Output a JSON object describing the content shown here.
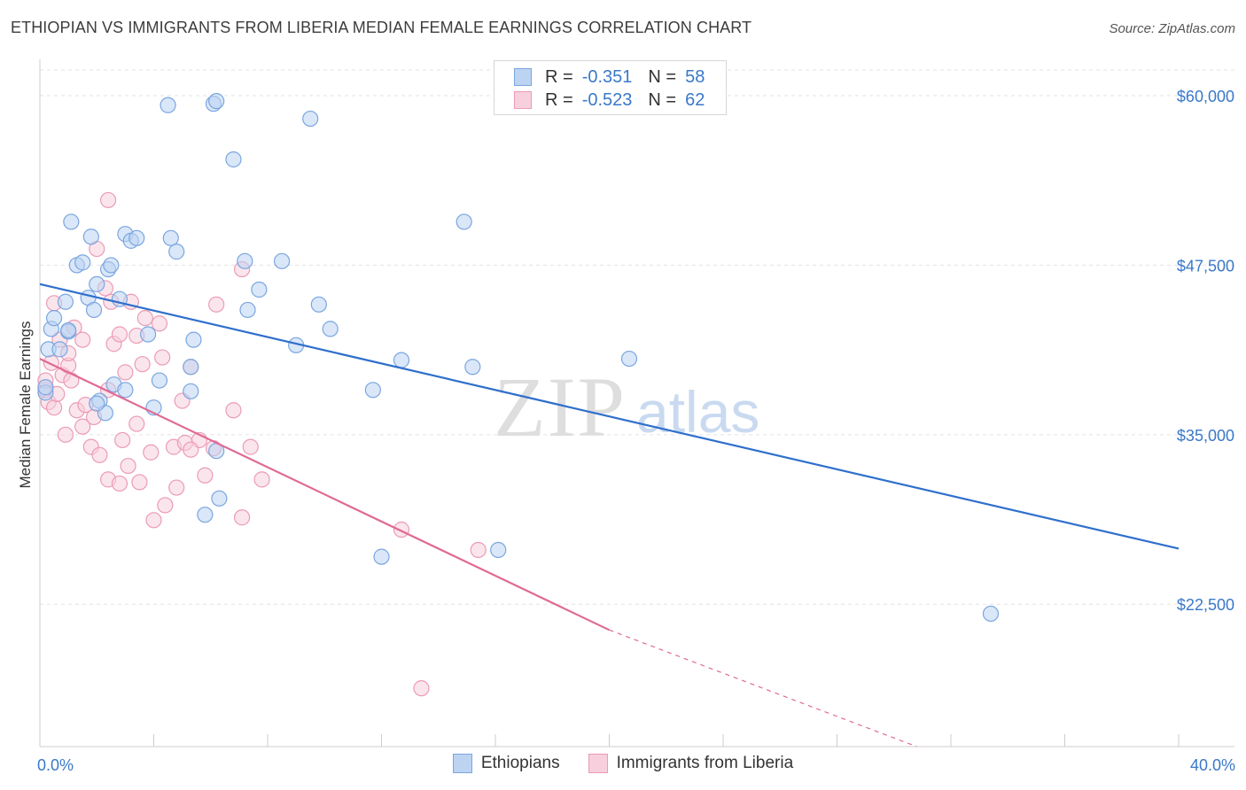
{
  "header": {
    "title": "ETHIOPIAN VS IMMIGRANTS FROM LIBERIA MEDIAN FEMALE EARNINGS CORRELATION CHART",
    "source": "Source: ZipAtlas.com"
  },
  "watermark": {
    "zip": "ZIP",
    "atlas": "atlas"
  },
  "legend": {
    "r_label": "R =",
    "n_label": "N =",
    "series1": {
      "r": "-0.351",
      "n": "58"
    },
    "series2": {
      "r": "-0.523",
      "n": "62"
    }
  },
  "bottom_legend": {
    "series1": "Ethiopians",
    "series2": "Immigrants from Liberia"
  },
  "chart_data": {
    "type": "scatter",
    "title": "ETHIOPIAN VS IMMIGRANTS FROM LIBERIA MEDIAN FEMALE EARNINGS CORRELATION CHART",
    "xlabel": "",
    "ylabel": "Median Female Earnings",
    "xlim": [
      0,
      40
    ],
    "ylim": [
      12000,
      62000
    ],
    "x_tick_labels": [
      "0.0%",
      "40.0%"
    ],
    "y_ticks": [
      22500,
      35000,
      47500,
      60000
    ],
    "y_tick_labels": [
      "$22,500",
      "$35,000",
      "$47,500",
      "$60,000"
    ],
    "grid": true,
    "legend_position": "top-center",
    "colors": {
      "series1_stroke": "#7aa6e0",
      "series1_fill": "#bcd3f2",
      "series1_line": "#2f6fcc",
      "series2_stroke": "#eb9bb6",
      "series2_fill": "#f7cfdd",
      "series2_line": "#e06a95",
      "axis_label": "#3a78c9"
    },
    "series": [
      {
        "name": "Ethiopians",
        "r": -0.351,
        "n": 58,
        "trend": {
          "x0": 0,
          "y0": 46100,
          "x1": 40,
          "y1": 26600
        },
        "points": [
          [
            0.2,
            38100
          ],
          [
            0.2,
            38500
          ],
          [
            0.3,
            41300
          ],
          [
            0.4,
            42800
          ],
          [
            0.5,
            43600
          ],
          [
            0.9,
            44800
          ],
          [
            1.0,
            42600
          ],
          [
            1.1,
            50700
          ],
          [
            1.3,
            47500
          ],
          [
            1.5,
            47700
          ],
          [
            1.7,
            45100
          ],
          [
            1.8,
            49600
          ],
          [
            1.9,
            44200
          ],
          [
            2.0,
            46100
          ],
          [
            2.1,
            37500
          ],
          [
            2.3,
            36600
          ],
          [
            2.4,
            47200
          ],
          [
            2.5,
            47500
          ],
          [
            2.6,
            38700
          ],
          [
            2.8,
            45000
          ],
          [
            3.0,
            38300
          ],
          [
            3.0,
            49800
          ],
          [
            3.2,
            49300
          ],
          [
            3.4,
            49500
          ],
          [
            3.8,
            42400
          ],
          [
            4.2,
            39000
          ],
          [
            4.6,
            49500
          ],
          [
            4.8,
            48500
          ],
          [
            5.4,
            42000
          ],
          [
            6.2,
            33800
          ],
          [
            6.3,
            30300
          ],
          [
            7.2,
            47800
          ],
          [
            7.3,
            44200
          ],
          [
            7.7,
            45700
          ],
          [
            8.5,
            47800
          ],
          [
            9.0,
            41600
          ],
          [
            9.8,
            44600
          ],
          [
            10.2,
            42800
          ],
          [
            11.7,
            38300
          ],
          [
            12.0,
            26000
          ],
          [
            12.7,
            40500
          ],
          [
            14.9,
            50700
          ],
          [
            15.2,
            40000
          ],
          [
            16.1,
            26500
          ],
          [
            20.7,
            40600
          ],
          [
            33.4,
            21800
          ],
          [
            4.5,
            59300
          ],
          [
            6.1,
            59400
          ],
          [
            6.2,
            59600
          ],
          [
            6.8,
            55300
          ],
          [
            9.5,
            58300
          ],
          [
            0.7,
            41300
          ],
          [
            1.0,
            42700
          ],
          [
            2.0,
            37300
          ],
          [
            4.0,
            37000
          ],
          [
            5.3,
            38200
          ],
          [
            5.3,
            40000
          ],
          [
            5.8,
            29100
          ]
        ]
      },
      {
        "name": "Immigrants from Liberia",
        "r": -0.523,
        "n": 62,
        "trend": {
          "x0": 0,
          "y0": 40600,
          "x1": 20,
          "y1": 20600,
          "dashed_to_x": 30.8,
          "dashed_to_y": 12000
        },
        "points": [
          [
            0.2,
            38300
          ],
          [
            0.2,
            39000
          ],
          [
            0.3,
            37400
          ],
          [
            0.4,
            40300
          ],
          [
            0.5,
            37000
          ],
          [
            0.7,
            42000
          ],
          [
            0.8,
            39400
          ],
          [
            0.9,
            35000
          ],
          [
            1.0,
            40100
          ],
          [
            1.0,
            41000
          ],
          [
            1.2,
            42900
          ],
          [
            1.3,
            36800
          ],
          [
            1.5,
            35600
          ],
          [
            1.5,
            42000
          ],
          [
            1.6,
            37200
          ],
          [
            1.8,
            34100
          ],
          [
            1.9,
            36300
          ],
          [
            2.0,
            48700
          ],
          [
            2.1,
            33500
          ],
          [
            2.3,
            45800
          ],
          [
            2.4,
            31700
          ],
          [
            2.4,
            38300
          ],
          [
            2.5,
            44800
          ],
          [
            2.6,
            41700
          ],
          [
            2.8,
            31400
          ],
          [
            2.8,
            42400
          ],
          [
            2.9,
            34600
          ],
          [
            3.0,
            39600
          ],
          [
            3.1,
            32700
          ],
          [
            3.2,
            44800
          ],
          [
            3.4,
            35800
          ],
          [
            3.4,
            42300
          ],
          [
            3.5,
            31500
          ],
          [
            3.6,
            40200
          ],
          [
            3.7,
            43600
          ],
          [
            3.9,
            33700
          ],
          [
            4.0,
            28700
          ],
          [
            4.2,
            43200
          ],
          [
            4.3,
            40700
          ],
          [
            4.4,
            29800
          ],
          [
            4.7,
            34100
          ],
          [
            4.8,
            31100
          ],
          [
            5.0,
            37500
          ],
          [
            5.1,
            34400
          ],
          [
            5.3,
            40000
          ],
          [
            5.6,
            34600
          ],
          [
            5.8,
            32000
          ],
          [
            6.2,
            44600
          ],
          [
            6.8,
            36800
          ],
          [
            7.1,
            28900
          ],
          [
            7.4,
            34100
          ],
          [
            7.8,
            31700
          ],
          [
            12.7,
            28000
          ],
          [
            15.4,
            26500
          ],
          [
            13.4,
            16300
          ],
          [
            0.5,
            44700
          ],
          [
            0.6,
            38000
          ],
          [
            1.1,
            39000
          ],
          [
            2.4,
            52300
          ],
          [
            7.1,
            47200
          ],
          [
            5.3,
            33900
          ],
          [
            6.1,
            34000
          ]
        ]
      }
    ]
  }
}
